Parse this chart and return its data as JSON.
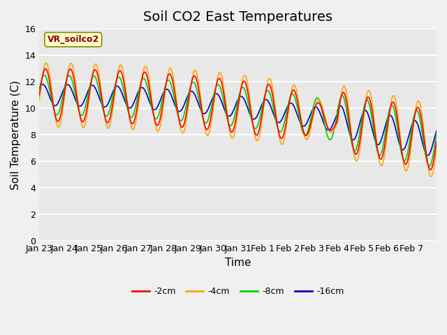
{
  "title": "Soil CO2 East Temperatures",
  "xlabel": "Time",
  "ylabel": "Soil Temperature (C)",
  "ylim": [
    0,
    16
  ],
  "yticks": [
    0,
    2,
    4,
    6,
    8,
    10,
    12,
    14,
    16
  ],
  "xtick_labels": [
    "Jan 23",
    "Jan 24",
    "Jan 25",
    "Jan 26",
    "Jan 27",
    "Jan 28",
    "Jan 29",
    "Jan 30",
    "Jan 31",
    "Feb 1",
    "Feb 2",
    "Feb 3",
    "Feb 4",
    "Feb 5",
    "Feb 6",
    "Feb 7"
  ],
  "legend_label": "VR_soilco2",
  "series_labels": [
    "-2cm",
    "-4cm",
    "-8cm",
    "-16cm"
  ],
  "series_colors": [
    "#ff0000",
    "#ffa500",
    "#00cc00",
    "#0000cc"
  ],
  "plot_bg_color": "#e8e8e8",
  "fig_bg_color": "#f0f0f0",
  "grid_color": "#ffffff",
  "title_fontsize": 14,
  "axis_label_fontsize": 11,
  "tick_fontsize": 9
}
